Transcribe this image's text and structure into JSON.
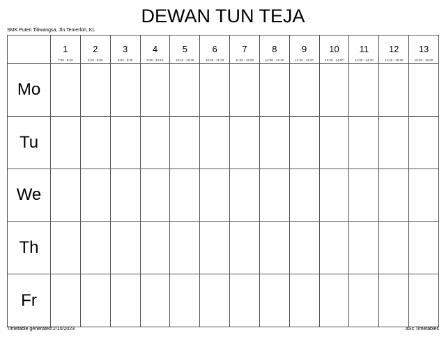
{
  "title": "DEWAN TUN TEJA",
  "school": "SMK Puteri Titiwangsa, Jln Temerloh, KL",
  "periods": [
    {
      "num": "1",
      "time": "7:30 - 8:10"
    },
    {
      "num": "2",
      "time": "8:10 - 8:50"
    },
    {
      "num": "3",
      "time": "8:50 - 9:30"
    },
    {
      "num": "4",
      "time": "9:30 - 10:10"
    },
    {
      "num": "5",
      "time": "10:10 - 10:40"
    },
    {
      "num": "6",
      "time": "10:40 - 11:20"
    },
    {
      "num": "7",
      "time": "11:20 - 12:00"
    },
    {
      "num": "8",
      "time": "12:00 - 12:40"
    },
    {
      "num": "9",
      "time": "12:40 - 13:20"
    },
    {
      "num": "10",
      "time": "13:20 - 14:00"
    },
    {
      "num": "11",
      "time": "14:00 - 14:40"
    },
    {
      "num": "12",
      "time": "14:40 - 15:20"
    },
    {
      "num": "13",
      "time": "15:20 - 16:00"
    }
  ],
  "days": [
    "Mo",
    "Tu",
    "We",
    "Th",
    "Fr"
  ],
  "footer": {
    "generated": "Timetable generated:2/10/2023",
    "brand": "aSc Timetables"
  }
}
